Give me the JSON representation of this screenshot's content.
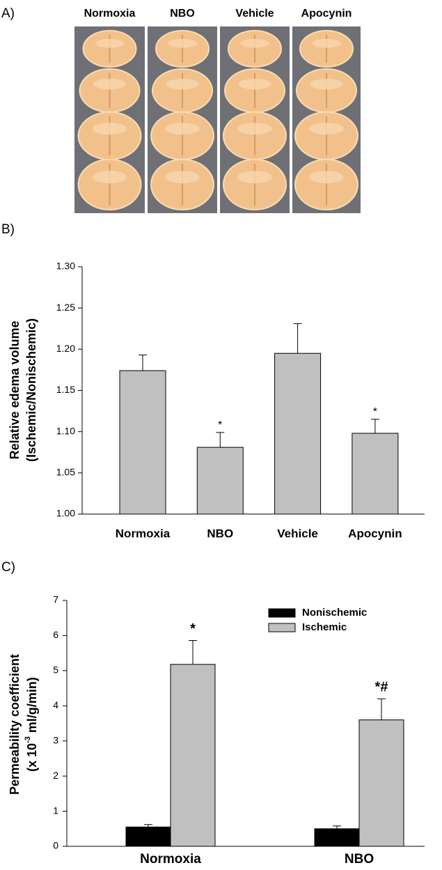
{
  "panel_a": {
    "label": "A)",
    "columns": [
      "Normoxia",
      "NBO",
      "Vehicle",
      "Apocynin"
    ]
  },
  "chart_data": [
    {
      "type": "bar",
      "panel_label": "B)",
      "ylabel": [
        "Relative edema volume",
        "(Ischemic/Nonischemic)"
      ],
      "categories": [
        "Normoxia",
        "NBO",
        "Vehicle",
        "Apocynin"
      ],
      "values": [
        1.174,
        1.081,
        1.195,
        1.098
      ],
      "errors": [
        0.019,
        0.018,
        0.036,
        0.017
      ],
      "annotations": [
        null,
        "*",
        null,
        "*"
      ],
      "color": "#c0c0c0",
      "ylim": [
        1.0,
        1.3
      ],
      "yticks": [
        {
          "value": 1.0,
          "label": "1.00"
        },
        {
          "value": 1.05,
          "label": "1.05"
        },
        {
          "value": 1.1,
          "label": "1.10"
        },
        {
          "value": 1.15,
          "label": "1.15"
        },
        {
          "value": 1.2,
          "label": "1.20"
        },
        {
          "value": 1.25,
          "label": "1.25"
        },
        {
          "value": 1.3,
          "label": "1.30"
        }
      ]
    },
    {
      "type": "grouped_bar",
      "panel_label": "C)",
      "ylabel": [
        "Permeability coefficient",
        {
          "before": "(x 10",
          "sup": "-3",
          "after": " ml/g/min)"
        }
      ],
      "categories": [
        "Normoxia",
        "NBO"
      ],
      "series": [
        {
          "name": "Nonischemic",
          "color": "#000000",
          "values": [
            0.55,
            0.5
          ],
          "errors": [
            0.07,
            0.08
          ]
        },
        {
          "name": "Ischemic",
          "color": "#c0c0c0",
          "values": [
            5.18,
            3.6
          ],
          "errors": [
            0.68,
            0.6
          ],
          "annotations": [
            "*",
            "*#"
          ]
        }
      ],
      "legend": "top-right",
      "ylim": [
        0,
        7
      ],
      "yticks": [
        0,
        1,
        2,
        3,
        4,
        5,
        6,
        7
      ]
    }
  ]
}
